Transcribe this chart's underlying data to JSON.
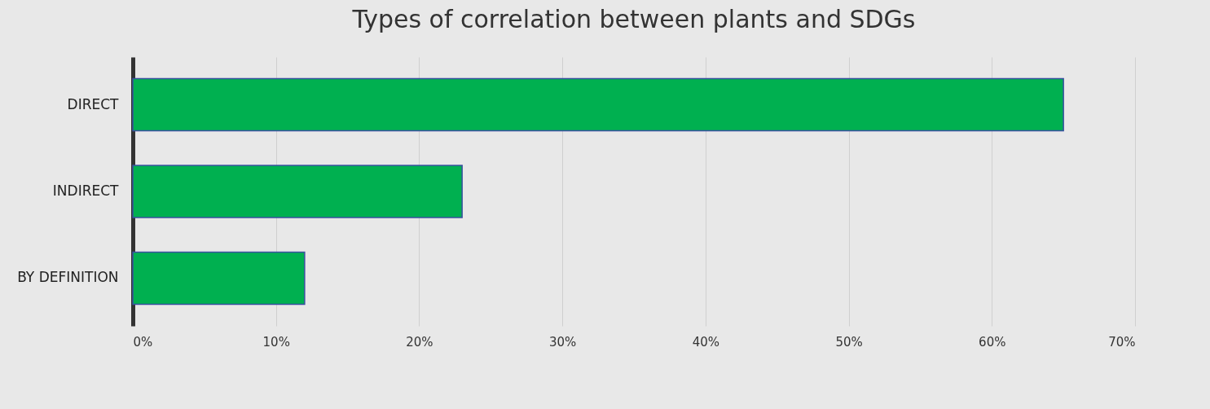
{
  "chart_data": {
    "type": "bar",
    "orientation": "horizontal",
    "title": "Types of correlation between plants and SDGs",
    "categories": [
      "DIRECT",
      "INDIRECT",
      "BY DEFINITION"
    ],
    "values": [
      65,
      23,
      12
    ],
    "color": "#00b050",
    "xlim": [
      0,
      70
    ],
    "xticks": [
      {
        "value": 0,
        "label": "0%"
      },
      {
        "value": 10,
        "label": "10%"
      },
      {
        "value": 20,
        "label": "20%"
      },
      {
        "value": 30,
        "label": "30%"
      },
      {
        "value": 40,
        "label": "40%"
      },
      {
        "value": 50,
        "label": "50%"
      },
      {
        "value": 60,
        "label": "60%"
      },
      {
        "value": 70,
        "label": "70%"
      }
    ],
    "grid": "x"
  }
}
